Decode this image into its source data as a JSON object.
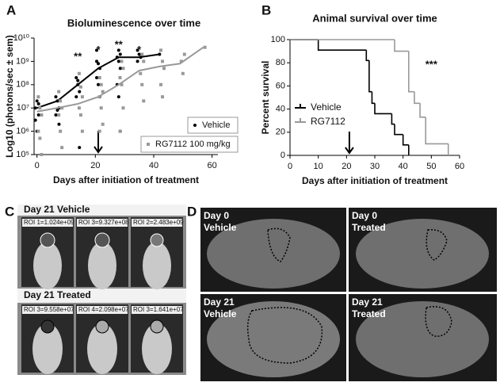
{
  "panel_labels": [
    "A",
    "B",
    "C",
    "D"
  ],
  "chart_data": [
    {
      "type": "scatter",
      "title": "Bioluminescence over time",
      "x_label": "Days after initiation of treatment",
      "y_label": "Log10 (photons/sec ± sem)",
      "log_y": true,
      "xlim": [
        -1,
        62
      ],
      "ylim": [
        100000,
        10000000000
      ],
      "xticks": [
        0,
        20,
        40,
        60
      ],
      "yticks": [
        {
          "value": 100000,
          "label": "10⁵"
        },
        {
          "value": 1000000,
          "label": "10⁶"
        },
        {
          "value": 10000000,
          "label": "10⁷"
        },
        {
          "value": 100000000,
          "label": "10⁸"
        },
        {
          "value": 1000000000,
          "label": "10⁹"
        },
        {
          "value": 10000000000,
          "label": "10¹⁰"
        }
      ],
      "series": [
        {
          "name": "Vehicle",
          "color": "#000000",
          "marker": "circle",
          "x": [
            0,
            0,
            0,
            0,
            0,
            0,
            7,
            7,
            7,
            7,
            7,
            7,
            14,
            14,
            14,
            14,
            14,
            14,
            21,
            21,
            21,
            21,
            21,
            21,
            21,
            28,
            28,
            28,
            28,
            28,
            28,
            28,
            28,
            35,
            35,
            35,
            35,
            42
          ],
          "values": [
            10000000,
            20000000,
            5000000,
            3000000,
            1000000,
            15000000,
            30000000,
            20000000,
            10000000,
            5000000,
            8000000,
            2000000,
            200000000,
            100000000,
            50000000,
            30000000,
            150000000,
            200000,
            1000000000,
            800000000,
            500000000,
            200000000,
            100000000,
            30000000,
            3000000000,
            3000000000,
            2000000000,
            1500000000,
            1000000000,
            500000000,
            100000000,
            30000000,
            1000000,
            3000000000,
            2000000000,
            1500000000,
            1000000000,
            2000000000
          ],
          "line_x": [
            0,
            7,
            14,
            21,
            28,
            35,
            42
          ],
          "line_values": [
            10000000,
            20000000,
            100000000,
            500000000,
            1500000000,
            1500000000,
            2000000000
          ]
        },
        {
          "name": "RG7112 100 mg/kg",
          "color": "#999999",
          "marker": "square",
          "x": [
            1,
            1,
            1,
            1,
            1,
            1,
            8,
            8,
            8,
            8,
            8,
            8,
            15,
            15,
            15,
            15,
            15,
            15,
            22,
            22,
            22,
            22,
            22,
            22,
            22,
            29,
            29,
            29,
            29,
            29,
            29,
            36,
            36,
            36,
            36,
            36,
            43,
            43,
            43,
            43,
            43,
            50,
            50,
            50,
            57
          ],
          "values": [
            30000000,
            10000000,
            5000000,
            1000000,
            500000,
            100000,
            50000000,
            20000000,
            10000000,
            5000000,
            1000000,
            200000,
            300000000,
            80000000,
            30000000,
            10000000,
            5000000,
            1000000,
            200000000,
            100000000,
            50000000,
            30000000,
            10000000,
            2000000,
            1000000,
            1000000000,
            500000000,
            200000000,
            100000000,
            10000000,
            1000000,
            2000000000,
            1000000000,
            300000000,
            100000000,
            20000000,
            3000000000,
            1000000000,
            500000000,
            100000000,
            30000000,
            2000000000,
            1000000000,
            300000000,
            4000000000
          ],
          "line_x": [
            0,
            7,
            14,
            21,
            28,
            35,
            42,
            49,
            57
          ],
          "line_values": [
            7000000,
            10000000,
            15000000,
            30000000,
            100000000,
            400000000,
            600000000,
            800000000,
            4000000000
          ]
        }
      ],
      "annotations": [
        {
          "text": "**",
          "x": 14,
          "y": 1500000000
        },
        {
          "text": "*",
          "x": 21,
          "y": 3000000000
        },
        {
          "text": "**",
          "x": 28,
          "y": 5000000000
        },
        {
          "text": "*",
          "x": 35,
          "y": 3000000000
        }
      ],
      "arrow_x": 21
    },
    {
      "type": "step",
      "title": "Animal survival over time",
      "x_label": "Days after initiation of treatment",
      "y_label": "Percent survival",
      "xlim": [
        0,
        60
      ],
      "ylim": [
        0,
        100
      ],
      "xticks": [
        0,
        10,
        20,
        30,
        40,
        50,
        60
      ],
      "yticks": [
        0,
        20,
        40,
        60,
        80,
        100
      ],
      "series": [
        {
          "name": "Vehicle",
          "color": "#000000",
          "x": [
            0,
            10,
            27,
            28,
            29,
            30,
            36,
            37,
            40,
            42
          ],
          "values": [
            100,
            91,
            82,
            55,
            45,
            36,
            27,
            18,
            9,
            0
          ]
        },
        {
          "name": "RG7112",
          "color": "#999999",
          "x": [
            0,
            37,
            42,
            44,
            46,
            48,
            56
          ],
          "values": [
            100,
            90,
            55,
            45,
            33,
            10,
            0
          ]
        }
      ],
      "annotations": [
        {
          "text": "***",
          "x": 50,
          "y": 78
        }
      ],
      "arrow_x": 21
    }
  ],
  "panel_c": {
    "rows": [
      {
        "title": "Day 21 Vehicle",
        "rois": [
          "ROI 1=1.024e+09",
          "ROI 3=9.327e+08",
          "ROI 2=2.483e+09"
        ]
      },
      {
        "title": "Day 21 Treated",
        "rois": [
          "ROI 3=9.558e+07",
          "ROI 4=2.098e+07",
          "ROI 3=1.641e+07"
        ]
      }
    ]
  },
  "panel_d": {
    "images": [
      {
        "day": "Day 0",
        "group": "Vehicle"
      },
      {
        "day": "Day 0",
        "group": "Treated"
      },
      {
        "day": "Day 21",
        "group": "Vehicle"
      },
      {
        "day": "Day 21",
        "group": "Treated"
      }
    ]
  }
}
